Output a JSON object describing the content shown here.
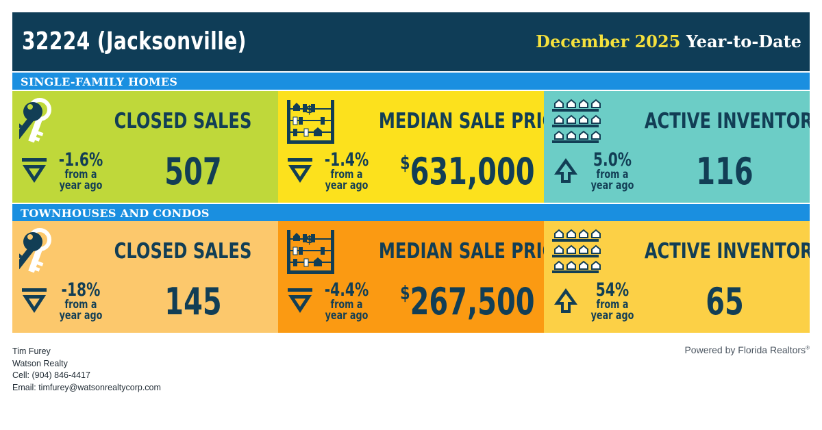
{
  "header": {
    "zip_area": "32224 (Jacksonville)",
    "period_month": "December 2025",
    "period_suffix": "Year-to-Date"
  },
  "sections": [
    {
      "title": "SINGLE-FAMILY HOMES",
      "tiles": [
        {
          "icon": "keys-icon",
          "title": "CLOSED SALES",
          "direction": "down",
          "change": "-1.6%",
          "change_sub": "from a year ago",
          "currency": "",
          "value": "507",
          "color": "#bfd83a"
        },
        {
          "icon": "abacus-icon",
          "title": "MEDIAN SALE PRICE",
          "direction": "down",
          "change": "-1.4%",
          "change_sub": "from a year ago",
          "currency": "$",
          "value": "631,000",
          "color": "#fce11d"
        },
        {
          "icon": "houses-icon",
          "title": "ACTIVE INVENTORY",
          "direction": "up",
          "change": "5.0%",
          "change_sub": "from a year ago",
          "currency": "",
          "value": "116",
          "color": "#6ccdc6"
        }
      ]
    },
    {
      "title": "TOWNHOUSES AND CONDOS",
      "tiles": [
        {
          "icon": "keys-icon",
          "title": "CLOSED SALES",
          "direction": "down",
          "change": "-18%",
          "change_sub": "from a year ago",
          "currency": "",
          "value": "145",
          "color": "#fcc86c"
        },
        {
          "icon": "abacus-icon",
          "title": "MEDIAN SALE PRICE",
          "direction": "down",
          "change": "-4.4%",
          "change_sub": "from a year ago",
          "currency": "$",
          "value": "267,500",
          "color": "#fb9a12"
        },
        {
          "icon": "houses-icon",
          "title": "ACTIVE INVENTORY",
          "direction": "up",
          "change": "54%",
          "change_sub": "from a year ago",
          "currency": "",
          "value": "65",
          "color": "#fcd046"
        }
      ]
    }
  ],
  "footer": {
    "name": "Tim Furey",
    "company": "Watson Realty",
    "cell": "Cell: (904) 846-4417",
    "email": "Email: timfurey@watsonrealtycorp.com",
    "powered_by": "Powered by Florida Realtors",
    "powered_mark": "®"
  },
  "colors": {
    "banner": "#0f3d57",
    "section_bar": "#1a8fe0",
    "ink": "#123e55",
    "accent_yellow": "#f5e13d"
  }
}
